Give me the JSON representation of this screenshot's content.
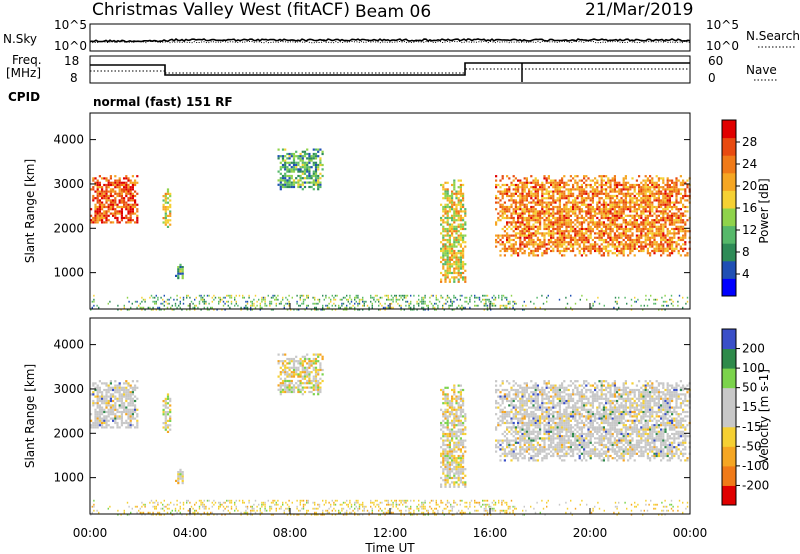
{
  "header": {
    "station": "Christmas Valley West (fitACF)",
    "beam": "Beam 06",
    "date": "21/Mar/2019"
  },
  "left_labels": {
    "nsky": "N.Sky",
    "freq_line1": "Freq.",
    "freq_line2": "[MHz]",
    "cpid": "CPID"
  },
  "right_labels": {
    "nsearch": "N.Search",
    "nave": "Nave"
  },
  "noise_panel": {
    "ticks_left": [
      "10^5",
      "10^0"
    ],
    "ticks_right": [
      "10^5",
      "10^0"
    ]
  },
  "freq_panel": {
    "ticks_left": [
      "18",
      "8"
    ],
    "ticks_right": [
      "60",
      "0"
    ]
  },
  "cpid_text": "normal (fast) 151 RF",
  "colors": {
    "power": [
      "#0000ff",
      "#1f4fb4",
      "#2e8b57",
      "#56b86a",
      "#8fd34b",
      "#f5d033",
      "#f5a623",
      "#f07a18",
      "#e84a10",
      "#e00000"
    ],
    "velocity_pos": [
      "#3a4fc8",
      "#2e8a4a",
      "#7bd34b"
    ],
    "velocity_gray": "#c8c8c8",
    "velocity_neg": [
      "#f5d033",
      "#f5a623",
      "#f07a18",
      "#e00000"
    ]
  },
  "chart_data": [
    {
      "type": "heatmap",
      "name": "power",
      "ylabel": "Slant Range [km]",
      "ylim": [
        180,
        4600
      ],
      "xlim": [
        "00:00",
        "24:00"
      ],
      "yticks": [
        "1000",
        "2000",
        "3000",
        "4000"
      ],
      "colorbar_label": "Power [dB]",
      "colorbar_ticks": [
        "4",
        "8",
        "12",
        "16",
        "20",
        "24",
        "28"
      ],
      "colorbar_range": [
        0,
        32
      ],
      "echo_regions": [
        {
          "t": [
            0.0,
            1.9
          ],
          "range": [
            2150,
            3200
          ],
          "level": 0.85
        },
        {
          "t": [
            2.9,
            3.2
          ],
          "range": [
            2050,
            2900
          ],
          "level": 0.55
        },
        {
          "t": [
            3.4,
            3.7
          ],
          "range": [
            850,
            1200
          ],
          "level": 0.3
        },
        {
          "t": [
            7.5,
            9.3
          ],
          "range": [
            2900,
            3800
          ],
          "level": 0.3
        },
        {
          "t": [
            14.0,
            15.0
          ],
          "range": [
            800,
            3100
          ],
          "level": 0.55
        },
        {
          "t": [
            16.2,
            24.0
          ],
          "range": [
            1400,
            3200
          ],
          "level": 0.75
        }
      ],
      "ground_scatter_band": {
        "t": [
          0.0,
          24.0
        ],
        "range": [
          180,
          500
        ],
        "level": 0.35
      }
    },
    {
      "type": "heatmap",
      "name": "velocity",
      "ylabel": "Slant Range [km]",
      "ylim": [
        180,
        4600
      ],
      "xlim": [
        "00:00",
        "24:00"
      ],
      "yticks": [
        "1000",
        "2000",
        "3000",
        "4000"
      ],
      "colorbar_label": "Velocity [m s-1]",
      "colorbar_ticks": [
        "200",
        "100",
        "50",
        "15",
        "-15",
        "-50",
        "-100",
        "-200"
      ],
      "xticks": [
        "00:00",
        "04:00",
        "08:00",
        "12:00",
        "16:00",
        "20:00",
        "00:00"
      ],
      "xlabel": "Time UT"
    }
  ]
}
